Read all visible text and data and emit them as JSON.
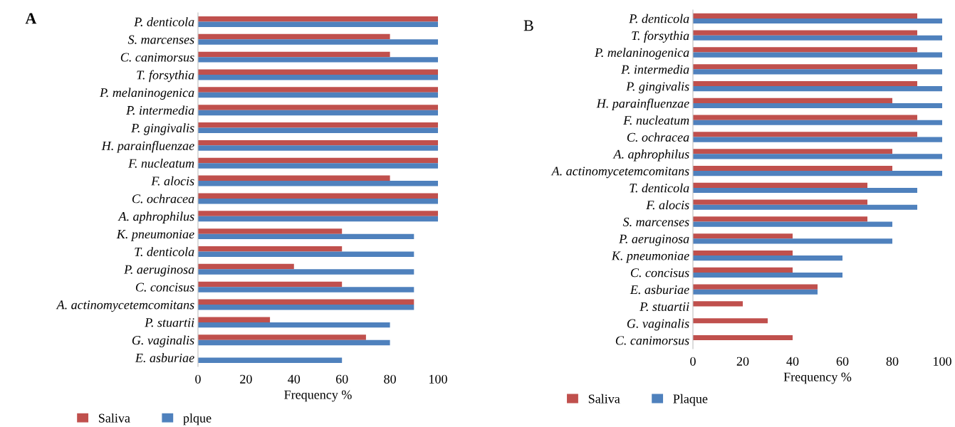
{
  "chart_data": [
    {
      "type": "bar",
      "orientation": "horizontal",
      "title": "A",
      "xlabel": "Frequency %",
      "xlim": [
        0,
        100
      ],
      "xticks": [
        0,
        20,
        40,
        60,
        80,
        100
      ],
      "grid": false,
      "legend": "bottom left",
      "categories": [
        "P. denticola",
        "S. marcenses",
        "C. canimorsus",
        "T. forsythia",
        "P. melaninogenica",
        "P. intermedia",
        "P. gingivalis",
        "H. parainfluenzae",
        "F. nucleatum",
        "F. alocis",
        "C. ochracea",
        "A. aphrophilus",
        "K. pneumoniae",
        "T. denticola",
        "P. aeruginosa",
        "C. concisus",
        "A. actinomycetemcomitans",
        "P. stuartii",
        "G. vaginalis",
        "E. asburiae"
      ],
      "series": [
        {
          "name": "Saliva",
          "color": "#c0504d",
          "values": [
            100,
            80,
            80,
            100,
            100,
            100,
            100,
            100,
            100,
            80,
            100,
            100,
            60,
            60,
            40,
            60,
            90,
            30,
            70,
            0
          ]
        },
        {
          "name": "plque",
          "color": "#4f81bd",
          "values": [
            100,
            100,
            100,
            100,
            100,
            100,
            100,
            100,
            100,
            100,
            100,
            100,
            90,
            90,
            90,
            90,
            90,
            80,
            80,
            60
          ]
        }
      ]
    },
    {
      "type": "bar",
      "orientation": "horizontal",
      "title": "B",
      "xlabel": "Frequency %",
      "xlim": [
        0,
        100
      ],
      "xticks": [
        0,
        20,
        40,
        60,
        80,
        100
      ],
      "grid": false,
      "legend": "bottom left",
      "categories": [
        "P. denticola",
        "T. forsythia",
        "P. melaninogenica",
        "P. intermedia",
        "P. gingivalis",
        "H. parainfluenzae",
        "F. nucleatum",
        "C. ochracea",
        "A. aphrophilus",
        "A. actinomycetemcomitans",
        "T. denticola",
        "F. alocis",
        "S. marcenses",
        "P. aeruginosa",
        "K. pneumoniae",
        "C. concisus",
        "E. asburiae",
        "P. stuartii",
        "G. vaginalis",
        "C. canimorsus"
      ],
      "series": [
        {
          "name": "Saliva",
          "color": "#c0504d",
          "values": [
            90,
            90,
            90,
            90,
            90,
            80,
            90,
            90,
            80,
            80,
            70,
            70,
            70,
            40,
            40,
            40,
            50,
            20,
            30,
            40
          ]
        },
        {
          "name": "Plaque",
          "color": "#4f81bd",
          "values": [
            100,
            100,
            100,
            100,
            100,
            100,
            100,
            100,
            100,
            100,
            90,
            90,
            80,
            80,
            60,
            60,
            50,
            0,
            0,
            0
          ]
        }
      ]
    }
  ]
}
